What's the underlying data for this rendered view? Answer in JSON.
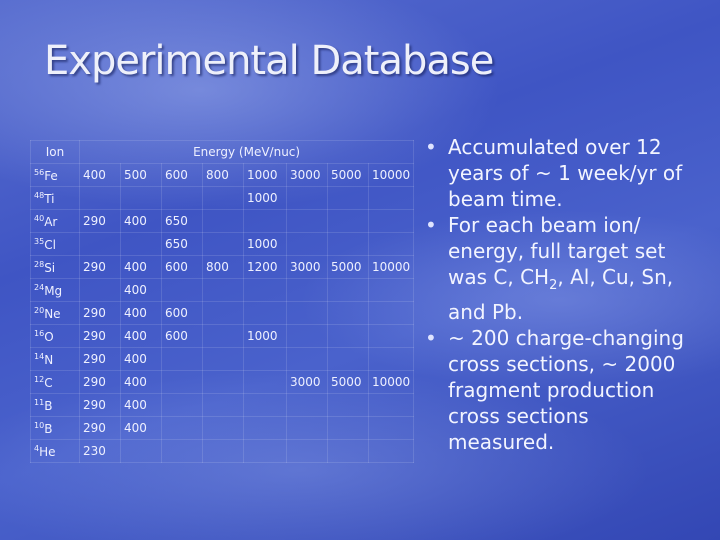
{
  "title": "Experimental Database",
  "table": {
    "header": {
      "ion": "Ion",
      "energy": "Energy (MeV/nuc)"
    },
    "rows": [
      {
        "ion": {
          "mass": "56",
          "symbol": "Fe"
        },
        "cells": [
          400,
          500,
          600,
          800,
          1000,
          3000,
          5000,
          10000
        ]
      },
      {
        "ion": {
          "mass": "48",
          "symbol": "Ti"
        },
        "cells": [
          null,
          null,
          null,
          null,
          1000,
          null,
          null,
          null
        ]
      },
      {
        "ion": {
          "mass": "40",
          "symbol": "Ar"
        },
        "cells": [
          290,
          400,
          650,
          null,
          null,
          null,
          null,
          null
        ]
      },
      {
        "ion": {
          "mass": "35",
          "symbol": "Cl"
        },
        "cells": [
          null,
          null,
          650,
          null,
          1000,
          null,
          null,
          null
        ]
      },
      {
        "ion": {
          "mass": "28",
          "symbol": "Si"
        },
        "cells": [
          290,
          400,
          600,
          800,
          1200,
          3000,
          5000,
          10000
        ]
      },
      {
        "ion": {
          "mass": "24",
          "symbol": "Mg"
        },
        "cells": [
          null,
          400,
          null,
          null,
          null,
          null,
          null,
          null
        ]
      },
      {
        "ion": {
          "mass": "20",
          "symbol": "Ne"
        },
        "cells": [
          290,
          400,
          600,
          null,
          null,
          null,
          null,
          null
        ]
      },
      {
        "ion": {
          "mass": "16",
          "symbol": "O"
        },
        "cells": [
          290,
          400,
          600,
          null,
          1000,
          null,
          null,
          null
        ]
      },
      {
        "ion": {
          "mass": "14",
          "symbol": "N"
        },
        "cells": [
          290,
          400,
          null,
          null,
          null,
          null,
          null,
          null
        ]
      },
      {
        "ion": {
          "mass": "12",
          "symbol": "C"
        },
        "cells": [
          290,
          400,
          null,
          null,
          null,
          3000,
          5000,
          10000
        ]
      },
      {
        "ion": {
          "mass": "11",
          "symbol": "B"
        },
        "cells": [
          290,
          400,
          null,
          null,
          null,
          null,
          null,
          null
        ]
      },
      {
        "ion": {
          "mass": "10",
          "symbol": "B"
        },
        "cells": [
          290,
          400,
          null,
          null,
          null,
          null,
          null,
          null
        ]
      },
      {
        "ion": {
          "mass": "4",
          "symbol": "He"
        },
        "cells": [
          230,
          null,
          null,
          null,
          null,
          null,
          null,
          null
        ]
      }
    ]
  },
  "bullets": [
    {
      "parts": [
        {
          "text": "Accumulated over 12 years of ~ 1 week/yr of beam time."
        }
      ]
    },
    {
      "parts": [
        {
          "text": "For each beam ion/ energy, full target set was C, CH"
        },
        {
          "sub": "2"
        },
        {
          "text": ", Al, Cu, Sn, and Pb."
        }
      ]
    },
    {
      "parts": [
        {
          "text": "~ 200 charge-changing cross sections, ~ 2000 fragment production cross sections measured."
        }
      ]
    }
  ]
}
